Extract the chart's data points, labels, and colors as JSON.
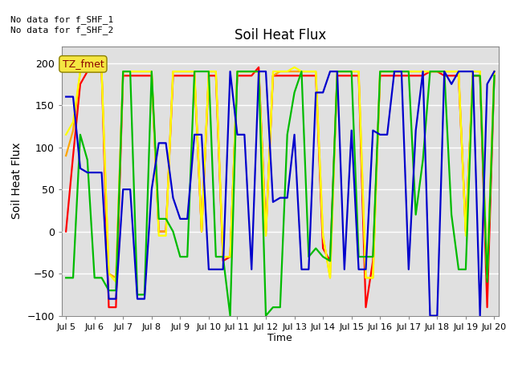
{
  "title": "Soil Heat Flux",
  "ylabel": "Soil Heat Flux",
  "xlabel": "Time",
  "annotation_top": "No data for f_SHF_1\nNo data for f_SHF_2",
  "tz_label": "TZ_fmet",
  "ylim": [
    -100,
    220
  ],
  "yticks": [
    -100,
    -50,
    0,
    50,
    100,
    150,
    200
  ],
  "colors": {
    "SHF1": "#FF0000",
    "SHF2": "#FFA500",
    "SHF3": "#FFFF00",
    "SHF4": "#00BB00",
    "SHF5": "#0000CC"
  },
  "background_color": "#E0E0E0",
  "grid_color": "#FFFFFF",
  "xtick_labels": [
    "Jul 5",
    "Jul 6",
    "Jul 7",
    "Jul 8",
    "Jul 9",
    "Jul 10",
    "Jul 11",
    "Jul 12",
    "Jul 13",
    "Jul 14",
    "Jul 15",
    "Jul 16",
    "Jul 17",
    "Jul 18",
    "Jul 19",
    "Jul 20"
  ],
  "xtick_positions": [
    5,
    6,
    7,
    8,
    9,
    10,
    11,
    12,
    13,
    14,
    15,
    16,
    17,
    18,
    19,
    20
  ],
  "x": [
    5.0,
    5.25,
    5.5,
    5.75,
    6.0,
    6.25,
    6.5,
    6.75,
    7.0,
    7.25,
    7.5,
    7.75,
    8.0,
    8.25,
    8.5,
    8.75,
    9.0,
    9.25,
    9.5,
    9.75,
    10.0,
    10.25,
    10.5,
    10.75,
    11.0,
    11.25,
    11.5,
    11.75,
    12.0,
    12.25,
    12.5,
    12.75,
    13.0,
    13.25,
    13.5,
    13.75,
    14.0,
    14.25,
    14.5,
    14.75,
    15.0,
    15.25,
    15.5,
    15.75,
    16.0,
    16.25,
    16.5,
    16.75,
    17.0,
    17.25,
    17.5,
    17.75,
    18.0,
    18.25,
    18.5,
    18.75,
    19.0,
    19.25,
    19.5,
    19.75,
    20.0
  ],
  "SHF1": [
    0,
    90,
    175,
    190,
    190,
    190,
    -90,
    -90,
    185,
    185,
    185,
    185,
    185,
    0,
    0,
    185,
    185,
    185,
    185,
    0,
    185,
    185,
    -35,
    -30,
    185,
    185,
    185,
    195,
    0,
    185,
    185,
    185,
    185,
    185,
    185,
    185,
    -20,
    -35,
    185,
    185,
    185,
    185,
    -90,
    -35,
    185,
    185,
    185,
    185,
    185,
    185,
    185,
    190,
    190,
    185,
    185,
    185,
    0,
    185,
    185,
    -90,
    185
  ],
  "SHF2": [
    90,
    120,
    190,
    190,
    190,
    190,
    -50,
    -55,
    190,
    190,
    190,
    190,
    190,
    0,
    0,
    190,
    190,
    190,
    190,
    0,
    190,
    190,
    -30,
    -30,
    190,
    190,
    190,
    190,
    -5,
    185,
    190,
    190,
    190,
    190,
    190,
    190,
    -5,
    -55,
    190,
    190,
    190,
    190,
    -55,
    -55,
    190,
    190,
    190,
    190,
    190,
    190,
    190,
    190,
    190,
    190,
    190,
    190,
    0,
    190,
    190,
    -55,
    190
  ],
  "SHF3": [
    115,
    130,
    190,
    190,
    190,
    190,
    -50,
    -60,
    190,
    190,
    190,
    190,
    190,
    -5,
    -5,
    190,
    190,
    190,
    190,
    0,
    190,
    190,
    -30,
    -30,
    190,
    190,
    190,
    190,
    -5,
    190,
    190,
    190,
    195,
    190,
    190,
    190,
    -5,
    -55,
    190,
    190,
    190,
    190,
    -55,
    -55,
    190,
    190,
    190,
    190,
    190,
    190,
    190,
    190,
    190,
    190,
    190,
    190,
    -5,
    190,
    190,
    -55,
    190
  ],
  "SHF4": [
    -55,
    -55,
    115,
    85,
    -55,
    -55,
    -70,
    -70,
    190,
    190,
    -75,
    -75,
    190,
    15,
    15,
    0,
    -30,
    -30,
    190,
    190,
    190,
    -30,
    -30,
    -100,
    190,
    190,
    190,
    190,
    -100,
    -90,
    -90,
    115,
    165,
    190,
    -30,
    -20,
    -30,
    -35,
    190,
    190,
    190,
    -30,
    -30,
    -30,
    190,
    190,
    190,
    190,
    190,
    20,
    85,
    190,
    190,
    190,
    20,
    -45,
    -45,
    185,
    185,
    -60,
    185
  ],
  "SHF5": [
    160,
    160,
    75,
    70,
    70,
    70,
    -80,
    -80,
    50,
    50,
    -80,
    -80,
    50,
    105,
    105,
    40,
    15,
    15,
    115,
    115,
    -45,
    -45,
    -45,
    190,
    115,
    115,
    -45,
    190,
    190,
    35,
    40,
    40,
    115,
    -45,
    -45,
    165,
    165,
    190,
    190,
    -45,
    120,
    -45,
    -45,
    120,
    115,
    115,
    190,
    190,
    -45,
    120,
    190,
    -100,
    -100,
    190,
    175,
    190,
    190,
    190,
    -100,
    175,
    190
  ]
}
